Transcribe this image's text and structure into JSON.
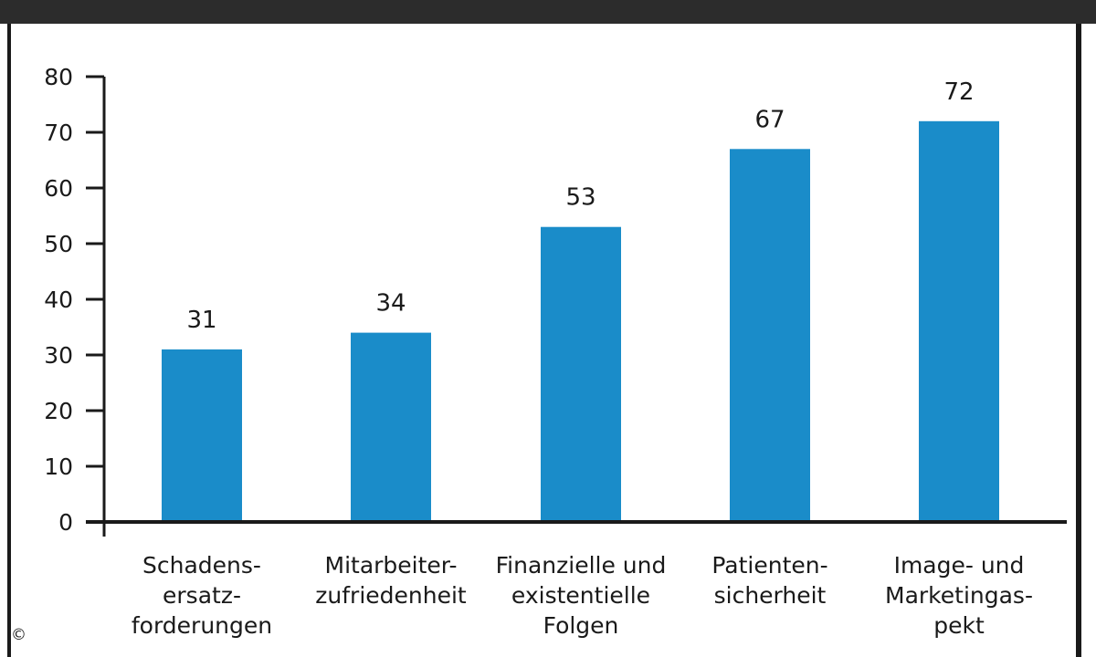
{
  "chart_data": {
    "type": "bar",
    "categories": [
      [
        "Schadens-",
        "ersatz-",
        "forderungen"
      ],
      [
        "Mitarbeiter-",
        "zufriedenheit"
      ],
      [
        "Finanzielle und",
        "existentielle",
        "Folgen"
      ],
      [
        "Patienten-",
        "sicherheit"
      ],
      [
        "Image- und",
        "Marketingas-",
        "pekt"
      ]
    ],
    "values": [
      31,
      34,
      53,
      67,
      72
    ],
    "value_labels": [
      "31",
      "34",
      "53",
      "67",
      "72"
    ],
    "yticks": [
      "0",
      "10",
      "20",
      "30",
      "40",
      "50",
      "60",
      "70",
      "80"
    ],
    "ylim": [
      0,
      80
    ],
    "bar_color": "#1a8cc9",
    "axis_color": "#1a1a1a",
    "grid": false
  },
  "footer": {
    "copyright_symbol": "©"
  }
}
